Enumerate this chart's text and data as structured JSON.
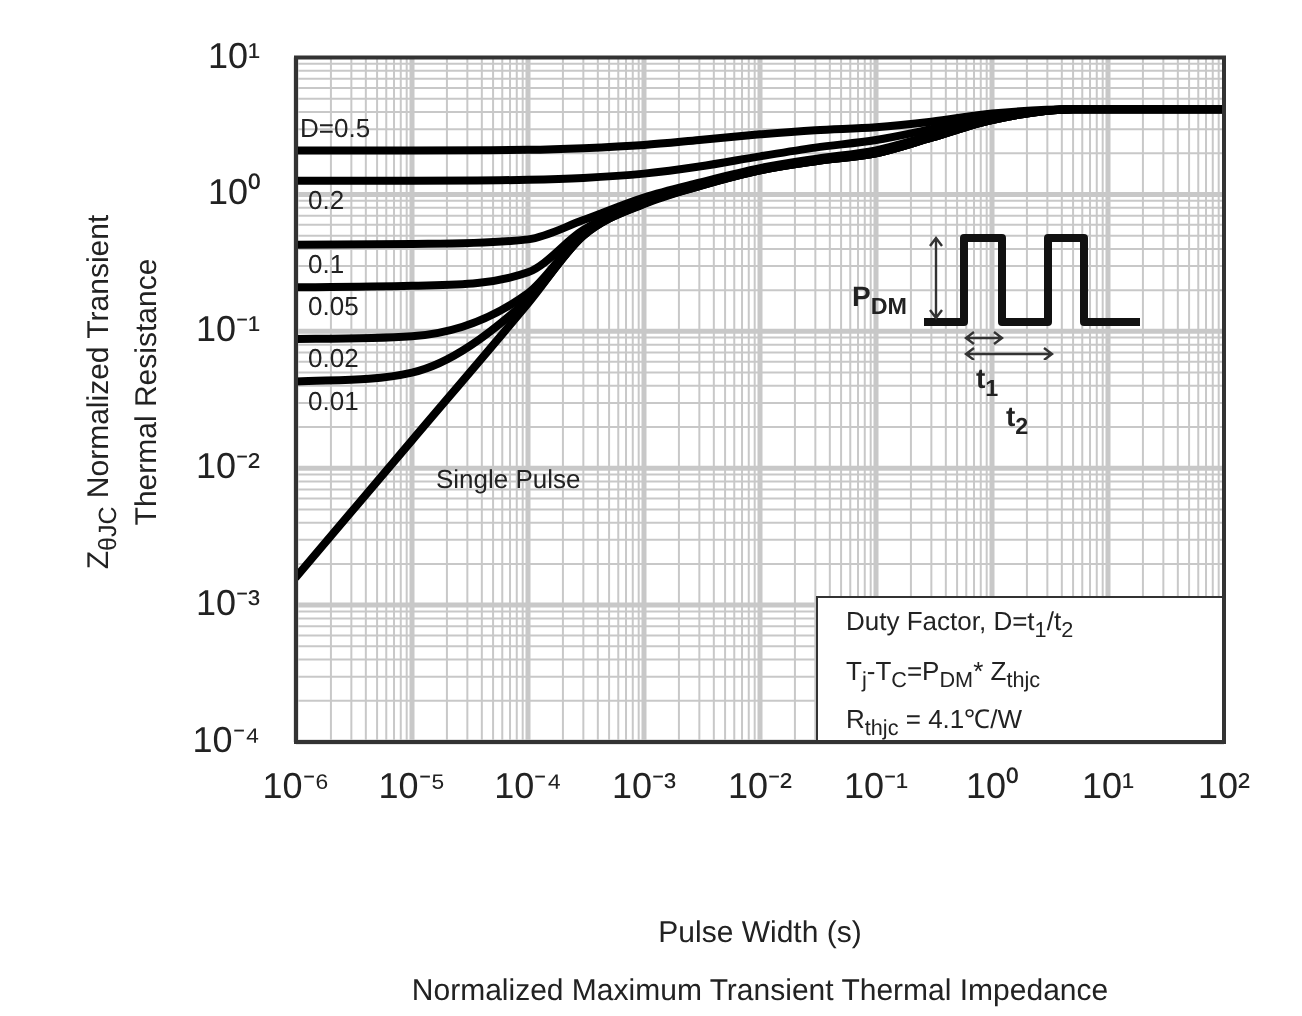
{
  "chart_data": {
    "type": "line",
    "xlabel": "Pulse Width (s)",
    "ylabel": "Z$_{θJC}$ Normalized Transient\nThermal Resistance",
    "annotations": [
      "Normalized Maximum Transient Thermal Impedance",
      "Duty Factor,  D=t$_{1}$/t$_{2}$",
      "T$_{j}$-T$_{C}$=P$_{DM}$* Z$_{thjc}$",
      "R$_{thjc}$ = 4.1℃/W",
      "P$_{DM}$",
      "t$_{1}$",
      "t$_{2}$"
    ],
    "x": [
      1e-06,
      1e-05,
      0.0001,
      0.0003,
      0.001,
      0.003,
      0.01,
      0.03,
      0.1,
      0.3,
      1,
      5,
      100
    ],
    "series": [
      {
        "name": "D=0.5",
        "color": "#000000",
        "values": [
          2.1,
          2.1,
          2.12,
          2.18,
          2.3,
          2.5,
          2.75,
          2.95,
          3.1,
          3.4,
          3.9,
          4.2,
          4.2
        ]
      },
      {
        "name": "0.2",
        "color": "#000000",
        "values": [
          1.26,
          1.26,
          1.28,
          1.32,
          1.42,
          1.6,
          1.9,
          2.2,
          2.5,
          3.0,
          3.7,
          4.2,
          4.2
        ]
      },
      {
        "name": "0.1",
        "color": "#000000",
        "values": [
          0.43,
          0.435,
          0.47,
          0.65,
          0.95,
          1.22,
          1.56,
          1.82,
          2.1,
          2.7,
          3.6,
          4.2,
          4.2
        ]
      },
      {
        "name": "0.05",
        "color": "#000000",
        "values": [
          0.21,
          0.215,
          0.27,
          0.55,
          0.9,
          1.18,
          1.52,
          1.78,
          2.05,
          2.65,
          3.55,
          4.2,
          4.2
        ]
      },
      {
        "name": "0.02",
        "color": "#000000",
        "values": [
          0.088,
          0.092,
          0.19,
          0.52,
          0.87,
          1.16,
          1.5,
          1.75,
          2.0,
          2.6,
          3.5,
          4.2,
          4.2
        ]
      },
      {
        "name": "0.01",
        "color": "#000000",
        "values": [
          0.043,
          0.05,
          0.17,
          0.5,
          0.86,
          1.15,
          1.5,
          1.75,
          2.0,
          2.6,
          3.5,
          4.2,
          4.2
        ]
      },
      {
        "name": "Single Pulse",
        "color": "#000000",
        "values": [
          0.0016,
          0.016,
          0.16,
          0.5,
          0.85,
          1.15,
          1.5,
          1.75,
          2.0,
          2.6,
          3.5,
          4.2,
          4.2
        ]
      }
    ],
    "log": "xy",
    "xlim": [
      1e-06,
      100
    ],
    "ylim": [
      0.0001,
      10
    ],
    "xticks": [
      {
        "value": 1e-06,
        "label": "10⁻⁶"
      },
      {
        "value": 1e-05,
        "label": "10⁻⁵"
      },
      {
        "value": 0.0001,
        "label": "10⁻⁴"
      },
      {
        "value": 0.001,
        "label": "10⁻³"
      },
      {
        "value": 0.01,
        "label": "10⁻²"
      },
      {
        "value": 0.1,
        "label": "10⁻¹"
      },
      {
        "value": 1,
        "label": "10⁰"
      },
      {
        "value": 10,
        "label": "10¹"
      },
      {
        "value": 100,
        "label": "10²"
      }
    ],
    "yticks": [
      {
        "value": 0.0001,
        "label": "10⁻⁴"
      },
      {
        "value": 0.001,
        "label": "10⁻³"
      },
      {
        "value": 0.01,
        "label": "10⁻²"
      },
      {
        "value": 0.1,
        "label": "10⁻¹"
      },
      {
        "value": 1,
        "label": "10⁰"
      },
      {
        "value": 10,
        "label": "10¹"
      }
    ],
    "grid": true,
    "legend": false,
    "marker": "none",
    "line_style": "solid"
  }
}
